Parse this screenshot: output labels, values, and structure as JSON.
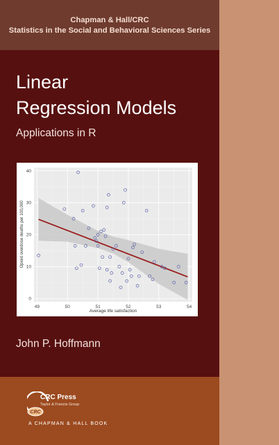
{
  "cover": {
    "series": [
      "Chapman & Hall/CRC",
      "Statistics in the Social and Behavioral Sciences Series"
    ],
    "title": [
      "Linear",
      "Regression Models"
    ],
    "subtitle": "Applications in R",
    "author": "John P. Hoffmann",
    "publisher": {
      "name": "CRC Press",
      "tagline": "Taylor & Francis Group",
      "imprint": "A CHAPMAN & HALL BOOK",
      "logo_text": "CRC"
    },
    "colors": {
      "top_band": "#6f3b2f",
      "body": "#571010",
      "bottom_band": "#9c4a1f",
      "spine": "#c99272",
      "regression_line": "#9b1c1c",
      "confidence_band": "#c9c9c9",
      "points": "#5a5fa8"
    }
  },
  "chart_data": {
    "type": "scatter",
    "xlabel": "Average life satisfaction",
    "ylabel": "Opioid overdose deaths per 100,000",
    "xlim": [
      48.9,
      54.1
    ],
    "ylim": [
      -1,
      41
    ],
    "xticks": [
      49,
      50,
      51,
      52,
      53,
      54
    ],
    "yticks": [
      0,
      10,
      20,
      30,
      40
    ],
    "grid": true,
    "x": [
      49.05,
      49.9,
      50.2,
      50.25,
      50.3,
      50.35,
      50.45,
      50.5,
      50.6,
      50.7,
      50.85,
      50.9,
      50.95,
      51.0,
      51.0,
      51.05,
      51.1,
      51.15,
      51.2,
      51.25,
      51.3,
      51.3,
      51.35,
      51.4,
      51.4,
      51.45,
      51.5,
      51.6,
      51.7,
      51.75,
      51.8,
      51.85,
      51.9,
      51.95,
      52.0,
      52.05,
      52.1,
      52.15,
      52.2,
      52.3,
      52.35,
      52.45,
      52.6,
      52.7,
      52.8,
      52.85,
      53.1,
      53.2,
      53.5,
      53.65,
      53.9
    ],
    "y": [
      13.5,
      28,
      25,
      16.5,
      9.5,
      39.5,
      10.5,
      27.5,
      16.5,
      22,
      29,
      19,
      18,
      16.5,
      20,
      9.5,
      21,
      13,
      21.5,
      19.5,
      28.5,
      9,
      32.5,
      5.5,
      13,
      8,
      15.5,
      16.5,
      10,
      3.5,
      8,
      30,
      34,
      5.5,
      12.5,
      9,
      7,
      16,
      17,
      4,
      7,
      14.5,
      27.5,
      7,
      6,
      11.5,
      10,
      9.5,
      5,
      10,
      5
    ],
    "fit": {
      "x": [
        49.05,
        53.95
      ],
      "y": [
        24.8,
        6.8
      ]
    },
    "band_upper": [
      [
        49.05,
        31.5
      ],
      [
        50.0,
        26.2
      ],
      [
        51.0,
        21.2
      ],
      [
        51.5,
        19.4
      ],
      [
        52.0,
        18.3
      ],
      [
        53.0,
        15.6
      ],
      [
        53.95,
        14.0
      ]
    ],
    "band_lower": [
      [
        49.05,
        18.1
      ],
      [
        50.0,
        17.8
      ],
      [
        51.0,
        15.8
      ],
      [
        51.5,
        14.1
      ],
      [
        52.0,
        11.4
      ],
      [
        53.0,
        4.6
      ],
      [
        53.95,
        -0.4
      ]
    ]
  }
}
